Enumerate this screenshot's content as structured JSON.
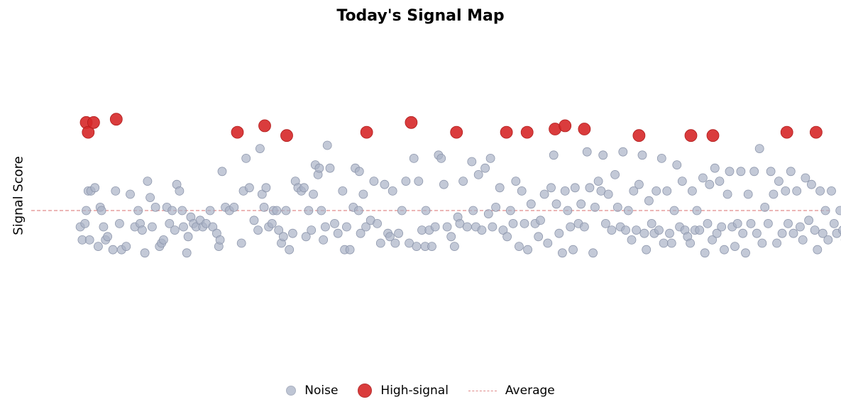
{
  "chart_data": {
    "type": "scatter",
    "title": "Today's Signal Map",
    "xlabel": "",
    "ylabel": "Signal Score",
    "xlim": [
      0,
      120
    ],
    "ylim": [
      -3.3,
      3.3
    ],
    "grid": false,
    "legend_position": "bottom-center",
    "average_line": {
      "label": "Average",
      "y": 0.0,
      "color": "#e08a8a"
    },
    "series": [
      {
        "name": "Noise",
        "color": "#a9b2c6",
        "points": [
          [
            3.1,
            -0.5
          ],
          [
            3.4,
            -0.9
          ],
          [
            3.8,
            -0.4
          ],
          [
            4.0,
            0.0
          ],
          [
            4.3,
            0.6
          ],
          [
            4.5,
            -0.9
          ],
          [
            4.7,
            0.6
          ],
          [
            5.3,
            0.7
          ],
          [
            5.8,
            -1.1
          ],
          [
            6.1,
            0.1
          ],
          [
            6.3,
            0.0
          ],
          [
            6.6,
            -0.5
          ],
          [
            6.9,
            -0.9
          ],
          [
            7.2,
            -0.8
          ],
          [
            8.0,
            -1.2
          ],
          [
            8.4,
            0.6
          ],
          [
            9.0,
            -0.4
          ],
          [
            9.3,
            -1.2
          ],
          [
            10.0,
            -1.1
          ],
          [
            10.6,
            0.5
          ],
          [
            11.3,
            -0.5
          ],
          [
            11.8,
            0.0
          ],
          [
            12.1,
            -0.4
          ],
          [
            12.4,
            -0.6
          ],
          [
            12.8,
            -1.3
          ],
          [
            13.2,
            0.9
          ],
          [
            13.6,
            0.4
          ],
          [
            13.9,
            -0.5
          ],
          [
            14.4,
            0.1
          ],
          [
            15.0,
            -1.1
          ],
          [
            15.3,
            -1.0
          ],
          [
            15.6,
            -0.9
          ],
          [
            16.1,
            0.1
          ],
          [
            16.5,
            -0.4
          ],
          [
            16.9,
            0.0
          ],
          [
            17.3,
            -0.6
          ],
          [
            17.6,
            0.8
          ],
          [
            18.0,
            0.6
          ],
          [
            18.4,
            0.0
          ],
          [
            18.6,
            -0.5
          ],
          [
            19.1,
            -1.3
          ],
          [
            19.3,
            -0.8
          ],
          [
            19.7,
            -0.2
          ],
          [
            20.1,
            -0.4
          ],
          [
            20.5,
            -0.5
          ],
          [
            21.1,
            -0.3
          ],
          [
            21.5,
            -0.5
          ],
          [
            22.0,
            -0.4
          ],
          [
            22.6,
            0.0
          ],
          [
            23.0,
            -0.5
          ],
          [
            23.6,
            -0.7
          ],
          [
            23.9,
            -1.1
          ],
          [
            24.1,
            -0.9
          ],
          [
            24.4,
            1.2
          ],
          [
            24.9,
            0.1
          ],
          [
            25.5,
            0.0
          ],
          [
            26.2,
            0.1
          ],
          [
            27.3,
            -1.0
          ],
          [
            27.6,
            0.6
          ],
          [
            28.0,
            1.6
          ],
          [
            28.5,
            0.7
          ],
          [
            29.2,
            -0.3
          ],
          [
            29.8,
            -0.6
          ],
          [
            30.1,
            1.9
          ],
          [
            30.4,
            0.5
          ],
          [
            30.7,
            0.1
          ],
          [
            31.0,
            0.7
          ],
          [
            31.4,
            -0.5
          ],
          [
            31.9,
            -0.4
          ],
          [
            32.1,
            0.0
          ],
          [
            32.6,
            0.0
          ],
          [
            32.9,
            -0.6
          ],
          [
            33.3,
            -1.0
          ],
          [
            33.6,
            -0.8
          ],
          [
            34.0,
            0.0
          ],
          [
            34.5,
            -1.2
          ],
          [
            35.0,
            -0.7
          ],
          [
            35.4,
            0.9
          ],
          [
            35.8,
            0.7
          ],
          [
            36.3,
            0.6
          ],
          [
            36.7,
            0.7
          ],
          [
            37.0,
            -0.8
          ],
          [
            37.4,
            0.0
          ],
          [
            37.8,
            -0.6
          ],
          [
            38.1,
            0.5
          ],
          [
            38.4,
            1.4
          ],
          [
            38.8,
            1.1
          ],
          [
            39.0,
            1.3
          ],
          [
            39.3,
            0.0
          ],
          [
            39.6,
            -0.9
          ],
          [
            39.9,
            -0.5
          ],
          [
            40.2,
            2.0
          ],
          [
            40.6,
            1.3
          ],
          [
            41.3,
            -0.4
          ],
          [
            41.8,
            -0.7
          ],
          [
            42.5,
            0.6
          ],
          [
            42.8,
            -1.2
          ],
          [
            43.1,
            -0.5
          ],
          [
            43.6,
            -1.2
          ],
          [
            44.1,
            0.1
          ],
          [
            44.4,
            1.3
          ],
          [
            44.9,
            0.0
          ],
          [
            45.0,
            1.2
          ],
          [
            45.2,
            -0.7
          ],
          [
            45.6,
            0.5
          ],
          [
            46.0,
            -0.5
          ],
          [
            46.7,
            -0.3
          ],
          [
            47.2,
            0.9
          ],
          [
            47.7,
            -0.4
          ],
          [
            48.2,
            -1.0
          ],
          [
            48.8,
            0.8
          ],
          [
            49.3,
            -0.7
          ],
          [
            49.6,
            -0.8
          ],
          [
            50.0,
            0.6
          ],
          [
            50.4,
            -1.0
          ],
          [
            50.9,
            -0.7
          ],
          [
            51.4,
            0.0
          ],
          [
            52.0,
            0.9
          ],
          [
            52.5,
            -1.0
          ],
          [
            53.2,
            1.6
          ],
          [
            53.6,
            -1.1
          ],
          [
            53.9,
            0.9
          ],
          [
            54.4,
            -0.6
          ],
          [
            54.9,
            -1.1
          ],
          [
            55.0,
            0.0
          ],
          [
            55.5,
            -0.6
          ],
          [
            55.9,
            -1.1
          ],
          [
            56.4,
            -0.5
          ],
          [
            56.9,
            1.7
          ],
          [
            57.3,
            1.6
          ],
          [
            57.7,
            0.8
          ],
          [
            58.2,
            -0.5
          ],
          [
            58.8,
            -0.8
          ],
          [
            59.3,
            -1.1
          ],
          [
            59.8,
            -0.2
          ],
          [
            60.1,
            -0.4
          ],
          [
            60.6,
            0.9
          ],
          [
            61.2,
            -0.5
          ],
          [
            61.9,
            1.5
          ],
          [
            62.1,
            0.0
          ],
          [
            62.5,
            -0.5
          ],
          [
            62.9,
            1.1
          ],
          [
            63.4,
            -0.6
          ],
          [
            63.9,
            1.3
          ],
          [
            64.4,
            -0.1
          ],
          [
            64.7,
            1.6
          ],
          [
            65.0,
            -0.5
          ],
          [
            65.5,
            0.1
          ],
          [
            66.1,
            0.7
          ],
          [
            66.6,
            -0.6
          ],
          [
            67.2,
            -0.8
          ],
          [
            67.7,
            0.0
          ],
          [
            68.1,
            -0.4
          ],
          [
            68.5,
            0.9
          ],
          [
            69.0,
            -1.1
          ],
          [
            69.4,
            0.6
          ],
          [
            69.8,
            -0.4
          ],
          [
            70.3,
            -1.2
          ],
          [
            70.8,
            0.2
          ],
          [
            71.4,
            -0.4
          ],
          [
            71.9,
            -0.8
          ],
          [
            72.2,
            -0.3
          ],
          [
            72.8,
            0.5
          ],
          [
            73.3,
            -1.0
          ],
          [
            73.8,
            0.7
          ],
          [
            74.2,
            1.7
          ],
          [
            74.6,
            0.2
          ],
          [
            75.0,
            -0.7
          ],
          [
            75.5,
            -1.3
          ],
          [
            75.9,
            0.6
          ],
          [
            76.3,
            0.0
          ],
          [
            76.7,
            -0.5
          ],
          [
            77.1,
            -1.2
          ],
          [
            77.4,
            0.7
          ],
          [
            77.9,
            -0.4
          ],
          [
            78.3,
            0.2
          ],
          [
            78.8,
            -0.5
          ],
          [
            79.2,
            1.8
          ],
          [
            79.6,
            0.7
          ],
          [
            80.1,
            -1.3
          ],
          [
            80.4,
            0.1
          ],
          [
            80.9,
            0.9
          ],
          [
            81.3,
            0.6
          ],
          [
            81.6,
            1.7
          ],
          [
            82.0,
            -0.4
          ],
          [
            82.4,
            0.5
          ],
          [
            82.9,
            -0.6
          ],
          [
            83.4,
            1.1
          ],
          [
            83.8,
            0.1
          ],
          [
            84.2,
            -0.5
          ],
          [
            84.6,
            1.8
          ],
          [
            85.0,
            -0.6
          ],
          [
            85.4,
            0.0
          ],
          [
            85.9,
            -0.9
          ],
          [
            86.2,
            0.6
          ],
          [
            86.6,
            -0.6
          ],
          [
            87.0,
            0.8
          ],
          [
            87.5,
            1.7
          ],
          [
            87.8,
            -0.7
          ],
          [
            88.1,
            -1.2
          ],
          [
            88.5,
            0.3
          ],
          [
            88.9,
            -0.4
          ],
          [
            89.3,
            -0.7
          ],
          [
            89.6,
            0.6
          ],
          [
            90.0,
            -0.6
          ],
          [
            90.4,
            1.6
          ],
          [
            90.7,
            -1.0
          ],
          [
            91.2,
            0.6
          ],
          [
            91.6,
            -0.7
          ],
          [
            91.9,
            -1.0
          ],
          [
            92.3,
            0.0
          ],
          [
            92.7,
            1.4
          ],
          [
            93.1,
            -0.5
          ],
          [
            93.5,
            0.9
          ],
          [
            93.9,
            -0.6
          ],
          [
            94.3,
            -0.8
          ],
          [
            94.7,
            -1.0
          ],
          [
            95.0,
            0.6
          ],
          [
            95.4,
            -0.6
          ],
          [
            95.7,
            0.0
          ],
          [
            96.1,
            -0.6
          ],
          [
            96.6,
            1.0
          ],
          [
            96.9,
            -1.3
          ],
          [
            97.3,
            -0.4
          ],
          [
            97.6,
            0.8
          ],
          [
            98.0,
            -0.9
          ],
          [
            98.4,
            1.3
          ],
          [
            98.7,
            -0.7
          ],
          [
            99.1,
            0.9
          ],
          [
            99.4,
            -0.5
          ],
          [
            99.8,
            -1.2
          ],
          [
            100.3,
            0.5
          ],
          [
            100.6,
            1.2
          ],
          [
            101.0,
            -0.5
          ],
          [
            101.4,
            -1.1
          ],
          [
            101.8,
            -0.4
          ],
          [
            102.3,
            1.2
          ],
          [
            102.6,
            -0.7
          ],
          [
            103.0,
            -1.3
          ],
          [
            103.4,
            0.5
          ],
          [
            103.8,
            -0.4
          ],
          [
            104.3,
            1.2
          ],
          [
            104.7,
            -0.7
          ],
          [
            105.1,
            1.9
          ],
          [
            105.5,
            -1.0
          ],
          [
            105.9,
            0.1
          ],
          [
            106.4,
            -0.4
          ],
          [
            106.8,
            1.2
          ],
          [
            107.2,
            0.5
          ],
          [
            107.7,
            -1.0
          ],
          [
            108.0,
            0.9
          ],
          [
            108.5,
            -0.7
          ],
          [
            109.0,
            0.6
          ],
          [
            109.4,
            -0.4
          ],
          [
            109.8,
            1.2
          ],
          [
            110.2,
            -0.7
          ],
          [
            110.7,
            0.6
          ],
          [
            111.2,
            -0.5
          ],
          [
            111.6,
            -0.9
          ],
          [
            112.0,
            1.0
          ],
          [
            112.5,
            -0.3
          ],
          [
            112.9,
            0.8
          ],
          [
            113.4,
            -0.6
          ],
          [
            113.8,
            -1.2
          ],
          [
            114.2,
            0.6
          ],
          [
            114.6,
            -0.7
          ],
          [
            115.0,
            0.0
          ],
          [
            115.4,
            -0.9
          ],
          [
            115.9,
            0.6
          ],
          [
            116.3,
            -0.4
          ],
          [
            116.7,
            -0.7
          ],
          [
            117.2,
            0.0
          ],
          [
            117.6,
            -0.6
          ],
          [
            118.0,
            -0.9
          ],
          [
            118.4,
            0.1
          ]
        ]
      },
      {
        "name": "High-signal",
        "color": "#d62728",
        "points": [
          [
            4.0,
            2.7
          ],
          [
            4.3,
            2.4
          ],
          [
            5.1,
            2.7
          ],
          [
            8.5,
            2.8
          ],
          [
            26.7,
            2.4
          ],
          [
            30.8,
            2.6
          ],
          [
            34.1,
            2.3
          ],
          [
            46.1,
            2.4
          ],
          [
            52.8,
            2.7
          ],
          [
            59.6,
            2.4
          ],
          [
            67.1,
            2.4
          ],
          [
            70.2,
            2.4
          ],
          [
            74.4,
            2.5
          ],
          [
            75.9,
            2.6
          ],
          [
            78.8,
            2.5
          ],
          [
            87.0,
            2.3
          ],
          [
            94.8,
            2.3
          ],
          [
            98.1,
            2.3
          ],
          [
            109.2,
            2.4
          ],
          [
            113.6,
            2.4
          ]
        ]
      }
    ]
  }
}
